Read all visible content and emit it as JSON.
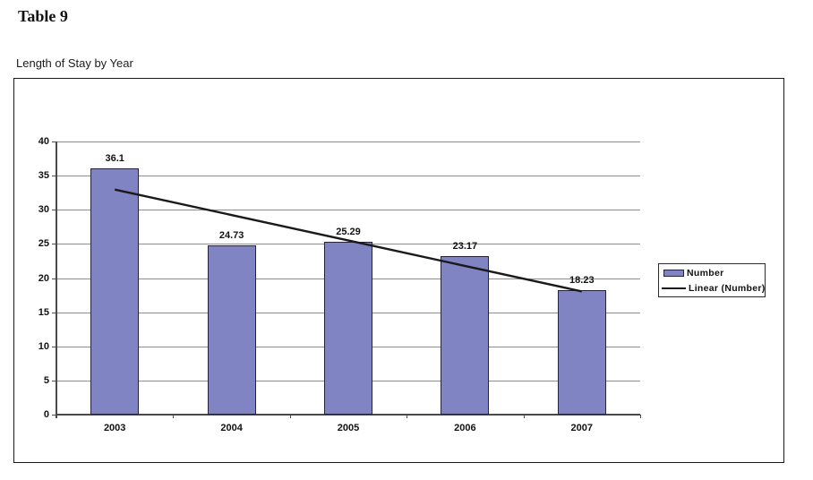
{
  "page": {
    "heading": "Table 9",
    "chart_title": "Length of Stay by Year"
  },
  "chart_data": {
    "type": "bar",
    "title": "Length of Stay by Year",
    "categories": [
      "2003",
      "2004",
      "2005",
      "2006",
      "2007"
    ],
    "series": [
      {
        "name": "Number",
        "type": "bar",
        "values": [
          36.1,
          24.73,
          25.29,
          23.17,
          18.23
        ],
        "color": "#8184c2"
      },
      {
        "name": "Linear (Number)",
        "type": "linear_trend",
        "color": "#1a1a1a"
      }
    ],
    "value_labels": [
      "36.1",
      "24.73",
      "25.29",
      "23.17",
      "18.23"
    ],
    "ylim": [
      0,
      40
    ],
    "yticks": [
      0,
      5,
      10,
      15,
      20,
      25,
      30,
      35,
      40
    ],
    "grid": true,
    "legend_position": "right",
    "xlabel": "",
    "ylabel": ""
  },
  "colors": {
    "bar_fill": "#8184c2",
    "bar_border": "#23233f",
    "gridline": "#8c8c8c",
    "axis": "#4a4a4a",
    "trend_line": "#1a1a1a",
    "frame_border": "#1a1a1a",
    "text": "#111111"
  }
}
